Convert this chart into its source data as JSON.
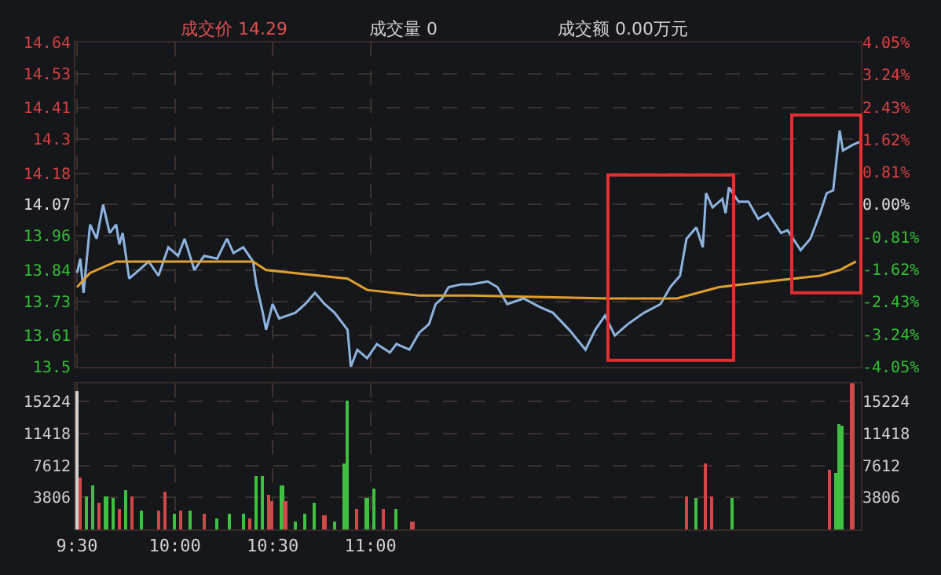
{
  "chart_data": [
    {
      "type": "line",
      "annotations": [
        "成交价 14.29",
        "成交量 0",
        "成交额 0.00万元"
      ],
      "categories": [
        null,
        null,
        null,
        null,
        null,
        null,
        null,
        null,
        null,
        null,
        null,
        null,
        null,
        null,
        null,
        null,
        null,
        null,
        null,
        null,
        null,
        null,
        null,
        null,
        null,
        null,
        null,
        null,
        null,
        null,
        null,
        null,
        null,
        null,
        null,
        null,
        null,
        null,
        null,
        null,
        null,
        null,
        null,
        null,
        null,
        null,
        null,
        null,
        null,
        null,
        null,
        null,
        null,
        null,
        null,
        null,
        null,
        null,
        null,
        null,
        null,
        null,
        null,
        null,
        null,
        null,
        null,
        null,
        null,
        null,
        null,
        null,
        null,
        null,
        null,
        null,
        null,
        null,
        null,
        null,
        null,
        null,
        null,
        null,
        null,
        null,
        null,
        null,
        null,
        null,
        null,
        null,
        null,
        null,
        null,
        null,
        null,
        null,
        null,
        null,
        null,
        null,
        null,
        null,
        null,
        null,
        null,
        null,
        null,
        null,
        null,
        null,
        null,
        null,
        null,
        null,
        null,
        null,
        null,
        null,
        null,
        null,
        null,
        null,
        null,
        null,
        null,
        null,
        null,
        null,
        null,
        null,
        null,
        null,
        null,
        null,
        null,
        null,
        null,
        null,
        null,
        null,
        null,
        null,
        null,
        null,
        null,
        null,
        null,
        null,
        null,
        null,
        null,
        null,
        null,
        null,
        null,
        null,
        null,
        null,
        null,
        null,
        null,
        null,
        null,
        null,
        null,
        null,
        null,
        null,
        null,
        null,
        null,
        null,
        null,
        null,
        null,
        null,
        null,
        null,
        null,
        null,
        null,
        null,
        null,
        null,
        null,
        null,
        null,
        null,
        null,
        null,
        null,
        null,
        null,
        null,
        null,
        null,
        null,
        null,
        null,
        null,
        null,
        null,
        null,
        null,
        null,
        null,
        null,
        null,
        null,
        null,
        null,
        null,
        null,
        null,
        null,
        null,
        null,
        null,
        null,
        null,
        null,
        null,
        null,
        null,
        null,
        null,
        null,
        null,
        null,
        null,
        null,
        null,
        null,
        null,
        null,
        null,
        null,
        null,
        null
      ],
      "ylim": [
        13.5,
        14.64
      ],
      "yticks": [
        13.5,
        13.61,
        13.73,
        13.84,
        13.96,
        14.07,
        14.18,
        14.3,
        14.41,
        14.53,
        14.64
      ],
      "y2lim": [
        -4.05,
        4.05
      ],
      "y2ticks": [
        {
          "value": -4.05,
          "label": "-4.05%"
        },
        {
          "value": -3.24,
          "label": "-3.24%"
        },
        {
          "value": -2.43,
          "label": "-2.43%"
        },
        {
          "value": -1.62,
          "label": "-1.62%"
        },
        {
          "value": -0.81,
          "label": "-0.81%"
        },
        {
          "value": 0,
          "label": "0.00%"
        },
        {
          "value": 0.81,
          "label": "0.81%"
        },
        {
          "value": 1.62,
          "label": "1.62%"
        },
        {
          "value": 2.43,
          "label": "2.43%"
        },
        {
          "value": 3.24,
          "label": "3.24%"
        },
        {
          "value": 4.05,
          "label": "4.05%"
        }
      ],
      "tick_labels": "y",
      "grid": true,
      "series": [
        {
          "color": "#8db4e0",
          "values": [
            13.83,
            13.88,
            13.76,
            null,
            14.0,
            null,
            13.95,
            null,
            14.07,
            null,
            13.97,
            null,
            14.0,
            13.93,
            13.97,
            null,
            13.81,
            null,
            null,
            13.84,
            null,
            null,
            13.87,
            null,
            null,
            13.82,
            null,
            null,
            13.92,
            null,
            null,
            13.89,
            null,
            13.95,
            null,
            null,
            13.84,
            null,
            null,
            13.89,
            null,
            null,
            null,
            13.88,
            null,
            null,
            13.95,
            null,
            13.9,
            null,
            null,
            13.92,
            null,
            null,
            13.87,
            13.79,
            null,
            13.69,
            13.63,
            null,
            13.72,
            null,
            13.67,
            null,
            null,
            null,
            null,
            13.69,
            null,
            null,
            13.72,
            null,
            null,
            13.76,
            null,
            null,
            13.72,
            null,
            null,
            13.69,
            null,
            null,
            null,
            13.63,
            13.5,
            null,
            13.56,
            null,
            null,
            13.53,
            null,
            null,
            13.58,
            null,
            null,
            null,
            13.55,
            null,
            13.58,
            null,
            null,
            null,
            13.56,
            null,
            null,
            13.62,
            null,
            null,
            13.65,
            null,
            13.72,
            null,
            13.74,
            null,
            13.78,
            null,
            null,
            null,
            13.79,
            null,
            null,
            13.79,
            null,
            null,
            null,
            null,
            13.8,
            null,
            null,
            13.78,
            null,
            null,
            13.72,
            null,
            null,
            null,
            null,
            13.74,
            null,
            null,
            null,
            null,
            13.71,
            null,
            null,
            null,
            13.69,
            null,
            null,
            null,
            null,
            13.63,
            null,
            null,
            null,
            null,
            13.56,
            null,
            null,
            13.63,
            null,
            null,
            13.68,
            null,
            null,
            13.61,
            null,
            null,
            null,
            13.65,
            null,
            null,
            null,
            null,
            13.69,
            null,
            null,
            null,
            null,
            13.72,
            null,
            null,
            13.78,
            null,
            null,
            13.82,
            null,
            13.95,
            null,
            null,
            13.99,
            null,
            13.92,
            14.11,
            null,
            14.06,
            null,
            null,
            14.09,
            14.04,
            14.13,
            null,
            null,
            14.08,
            null,
            null,
            14.08,
            null,
            null,
            14.02,
            null,
            null,
            14.04,
            null,
            null,
            null,
            13.97,
            null,
            13.98,
            null,
            null,
            null,
            13.91,
            null,
            null,
            13.95,
            null,
            null,
            14.04,
            null,
            14.11,
            null,
            14.12,
            null,
            14.33,
            14.26,
            null,
            null,
            14.28,
            null,
            14.29
          ]
        },
        {
          "color": "#e0a030",
          "values": [
            13.78,
            null,
            null,
            null,
            13.83,
            null,
            null,
            null,
            null,
            null,
            null,
            null,
            13.87,
            null,
            null,
            null,
            null,
            null,
            null,
            null,
            null,
            null,
            null,
            null,
            null,
            null,
            null,
            null,
            null,
            null,
            null,
            null,
            null,
            null,
            null,
            null,
            null,
            null,
            null,
            null,
            null,
            null,
            null,
            null,
            null,
            null,
            null,
            null,
            null,
            null,
            null,
            null,
            null,
            null,
            13.87,
            null,
            null,
            null,
            13.84,
            null,
            null,
            null,
            null,
            null,
            null,
            null,
            null,
            null,
            null,
            null,
            null,
            null,
            null,
            null,
            null,
            null,
            null,
            null,
            null,
            null,
            null,
            null,
            null,
            13.81,
            null,
            null,
            null,
            null,
            null,
            13.77,
            null,
            null,
            null,
            null,
            null,
            null,
            null,
            null,
            null,
            null,
            null,
            null,
            null,
            null,
            null,
            13.75,
            null,
            null,
            null,
            null,
            null,
            null,
            null,
            null,
            null,
            null,
            null,
            null,
            null,
            null,
            null,
            13.75,
            null,
            null,
            null,
            null,
            null,
            null,
            null,
            null,
            null,
            null,
            null,
            null,
            null,
            null,
            null,
            null,
            null,
            null,
            null,
            null,
            null,
            null,
            null,
            null,
            null,
            null,
            null,
            null,
            null,
            null,
            null,
            null,
            null,
            null,
            null,
            null,
            null,
            null,
            null,
            null,
            null,
            null,
            13.74,
            null,
            null,
            null,
            null,
            null,
            null,
            null,
            null,
            null,
            null,
            null,
            null,
            null,
            null,
            null,
            null,
            null,
            null,
            null,
            13.74,
            null,
            null,
            null,
            null,
            null,
            null,
            null,
            null,
            null,
            null,
            null,
            null,
            13.78,
            null,
            null,
            null,
            null,
            null,
            null,
            null,
            null,
            null,
            null,
            null,
            null,
            null,
            null,
            13.8,
            null,
            null,
            null,
            null,
            null,
            null,
            null,
            null,
            null,
            null,
            null,
            null,
            null,
            null,
            null,
            13.82,
            null,
            null,
            null,
            null,
            null,
            13.84,
            null,
            null,
            null,
            null,
            13.87,
            null
          ]
        }
      ]
    },
    {
      "type": "bar",
      "categories": [
        "9:30",
        null,
        null,
        null,
        null,
        null,
        null,
        null,
        null,
        null,
        null,
        null,
        null,
        null,
        null,
        null,
        null,
        null,
        null,
        null,
        null,
        null,
        null,
        null,
        null,
        null,
        null,
        null,
        null,
        null,
        "10:00",
        null,
        null,
        null,
        null,
        null,
        null,
        null,
        null,
        null,
        null,
        null,
        null,
        null,
        null,
        null,
        null,
        null,
        null,
        null,
        null,
        null,
        null,
        null,
        null,
        null,
        null,
        null,
        null,
        null,
        "10:30",
        null,
        null,
        null,
        null,
        null,
        null,
        null,
        null,
        null,
        null,
        null,
        null,
        null,
        null,
        null,
        null,
        null,
        null,
        null,
        null,
        null,
        null,
        null,
        null,
        null,
        null,
        null,
        null,
        null,
        "11:00",
        null,
        null,
        null,
        null,
        null,
        null,
        null,
        null,
        null,
        null,
        null,
        null,
        null,
        null,
        null,
        null,
        null,
        null,
        null,
        null,
        null,
        null,
        null,
        null,
        null,
        null,
        null,
        null,
        null,
        null,
        null,
        null,
        null,
        null,
        null,
        null,
        null,
        null,
        null,
        null,
        null,
        null,
        null,
        null,
        null,
        null,
        null,
        null,
        null,
        null,
        null,
        null,
        null,
        null,
        null,
        null,
        null,
        null,
        null,
        null,
        null,
        null,
        null,
        null,
        null,
        null,
        null,
        null,
        null,
        null,
        null,
        null,
        null,
        null,
        null,
        null,
        null,
        null,
        null,
        null,
        null,
        null,
        null,
        null,
        null,
        null,
        null,
        null,
        null,
        null,
        null,
        null,
        null,
        null,
        null,
        null,
        null,
        null,
        null,
        null,
        null,
        null,
        null,
        null,
        null,
        null,
        null,
        null,
        null,
        null,
        null,
        null,
        null,
        null,
        null,
        null,
        null,
        null,
        null,
        null,
        null,
        null,
        null,
        null,
        null,
        null,
        null,
        null,
        null,
        null,
        null,
        null,
        null,
        null,
        null,
        null,
        null,
        null,
        null,
        null,
        null,
        null,
        null,
        null,
        null,
        null,
        null,
        null,
        null,
        null
      ],
      "ylim": [
        0,
        17400
      ],
      "yticks": [
        3806,
        7612,
        11418,
        15224
      ],
      "y2lim": [
        0,
        17400
      ],
      "y2ticks": [
        3806,
        7612,
        11418,
        15224
      ],
      "grid": true,
      "values": [
        16500,
        6200,
        null,
        4000,
        null,
        5200,
        null,
        3100,
        null,
        4000,
        null,
        3700,
        null,
        2500,
        null,
        4600,
        null,
        4000,
        null,
        null,
        2200,
        null,
        null,
        null,
        null,
        2200,
        null,
        4400,
        null,
        null,
        1900,
        null,
        2200,
        null,
        null,
        2200,
        null,
        null,
        null,
        1900,
        null,
        null,
        null,
        1300,
        null,
        null,
        null,
        1900,
        null,
        null,
        null,
        1900,
        null,
        1300,
        null,
        6400,
        null,
        6400,
        null,
        4200,
        3300,
        null,
        null,
        5200,
        3300,
        null,
        null,
        1000,
        null,
        null,
        1900,
        null,
        null,
        3100,
        null,
        null,
        1600,
        null,
        null,
        1000,
        null,
        null,
        7800,
        15400,
        null,
        null,
        2500,
        null,
        null,
        3700,
        null,
        4800,
        null,
        null,
        2500,
        null,
        null,
        null,
        2500,
        null,
        null,
        null,
        null,
        1000,
        null,
        null,
        null,
        null,
        null,
        null,
        null,
        null,
        null,
        null,
        null,
        null,
        null,
        null,
        null,
        null,
        null,
        null,
        null,
        null,
        null,
        null,
        null,
        null,
        null,
        null,
        null,
        null,
        null,
        null,
        null,
        null,
        null,
        null,
        null,
        null,
        null,
        null,
        null,
        null,
        null,
        null,
        null,
        null,
        null,
        null,
        null,
        null,
        null,
        null,
        null,
        null,
        null,
        null,
        null,
        null,
        null,
        null,
        null,
        null,
        null,
        null,
        null,
        null,
        null,
        null,
        null,
        null,
        null,
        null,
        null,
        null,
        null,
        null,
        null,
        null,
        null,
        null,
        null,
        null,
        null,
        null,
        null,
        4000,
        null,
        null,
        3800,
        null,
        null,
        7800,
        null,
        4000,
        null,
        null,
        null,
        null,
        null,
        3700,
        null,
        null,
        null,
        null,
        null,
        null,
        null,
        null,
        null,
        null,
        null,
        null,
        null,
        null,
        null,
        null,
        null,
        null,
        null,
        null,
        null,
        null,
        null,
        null,
        null,
        null,
        null,
        null,
        null,
        7200,
        null,
        6700,
        12600,
        12300,
        null,
        null,
        17400,
        null,
        null
      ],
      "colors": [
        "#d0d0d0",
        "#d04848",
        null,
        "#40c040",
        null,
        "#40c040",
        null,
        "#d04848",
        null,
        "#40c040",
        null,
        "#40c040",
        null,
        "#d04848",
        null,
        "#40c040",
        null,
        "#d04848",
        null,
        null,
        "#40c040",
        null,
        null,
        null,
        null,
        "#d04848",
        null,
        "#d04848",
        null,
        null,
        "#40c040",
        null,
        "#d04848",
        null,
        null,
        "#40c040",
        null,
        null,
        null,
        "#d04848",
        null,
        null,
        null,
        "#40c040",
        null,
        null,
        null,
        "#40c040",
        null,
        null,
        null,
        "#40c040",
        null,
        "#d04848",
        null,
        "#40c040",
        null,
        "#40c040",
        null,
        "#d04848",
        "#d04848",
        null,
        null,
        "#40c040",
        "#d04848",
        null,
        null,
        "#40c040",
        null,
        null,
        "#40c040",
        null,
        null,
        "#40c040",
        null,
        null,
        "#d04848",
        null,
        null,
        "#40c040",
        null,
        null,
        "#40c040",
        "#40c040",
        null,
        null,
        "#d04848",
        null,
        null,
        "#40c040",
        null,
        "#40c040",
        null,
        null,
        "#d04848",
        null,
        null,
        null,
        "#40c040",
        null,
        null,
        null,
        null,
        "#d04848",
        null,
        null,
        null,
        null,
        null,
        null,
        null,
        null,
        null,
        null,
        null,
        null,
        null,
        null,
        null,
        null,
        null,
        null,
        null,
        null,
        null,
        null,
        null,
        null,
        null,
        null,
        null,
        null,
        null,
        null,
        null,
        null,
        null,
        null,
        null,
        null,
        null,
        null,
        null,
        null,
        null,
        null,
        null,
        null,
        null,
        null,
        null,
        null,
        null,
        null,
        null,
        null,
        null,
        null,
        null,
        null,
        null,
        null,
        null,
        null,
        null,
        null,
        null,
        null,
        null,
        null,
        null,
        null,
        null,
        null,
        null,
        null,
        null,
        null,
        null,
        null,
        null,
        null,
        null,
        null,
        null,
        null,
        null,
        "#d04848",
        null,
        null,
        "#40c040",
        null,
        null,
        "#d04848",
        null,
        "#d04848",
        null,
        null,
        null,
        null,
        null,
        "#40c040",
        null,
        null,
        null,
        null,
        null,
        null,
        null,
        null,
        null,
        null,
        null,
        null,
        null,
        null,
        null,
        null,
        null,
        null,
        null,
        null,
        null,
        null,
        null,
        null,
        null,
        null,
        null,
        null,
        null,
        "#d04848",
        null,
        "#40c040",
        "#40c040",
        "#40c040",
        null,
        null,
        "#d04848",
        null,
        null
      ]
    }
  ]
}
